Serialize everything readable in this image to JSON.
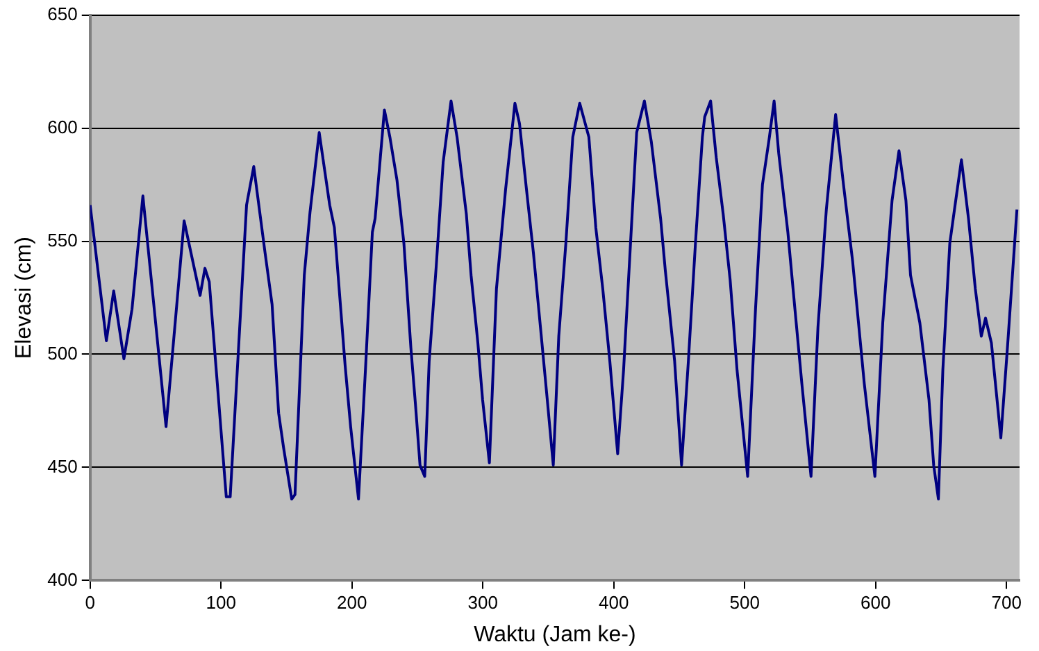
{
  "chart_data": {
    "type": "line",
    "xlabel": "Waktu (Jam ke-)",
    "ylabel": "Elevasi (cm)",
    "xlim": [
      0,
      710
    ],
    "xticks": [
      0,
      100,
      200,
      300,
      400,
      500,
      600,
      700
    ],
    "ylim": [
      400,
      650
    ],
    "yticks": [
      400,
      450,
      500,
      550,
      600,
      650
    ],
    "grid": "y",
    "legend": false,
    "marker": "none",
    "line_style": "solid",
    "series": [
      {
        "color": "#000080",
        "x": [
          0,
          12.4,
          18,
          25.8,
          32,
          40.3,
          58,
          71.8,
          84,
          87.7,
          91,
          104,
          107,
          119.5,
          125,
          133.6,
          139,
          144,
          147.7,
          154,
          156.5,
          163.6,
          168,
          175,
          183,
          186.6,
          194.8,
          199,
          205,
          210.3,
          215.6,
          217.7,
          224.8,
          229,
          234.4,
          239.7,
          245,
          248.5,
          252,
          255.6,
          259,
          264.4,
          269.7,
          275.7,
          280.3,
          287.4,
          291,
          296.2,
          299.8,
          305,
          310.4,
          317.4,
          324.5,
          328,
          333.3,
          338.6,
          344,
          349.2,
          353.8,
          358,
          363.4,
          368.7,
          374,
          381,
          386.3,
          391.6,
          397,
          403,
          407.5,
          412.8,
          417.5,
          423.4,
          428.7,
          435.8,
          439.4,
          446.5,
          451.8,
          457,
          462.4,
          467.7,
          469.5,
          474,
          478.3,
          483.6,
          488.9,
          494.2,
          502.3,
          508.3,
          513.6,
          518.9,
          522.5,
          526,
          533,
          538.4,
          543.7,
          550.7,
          556,
          562.4,
          569.5,
          575.5,
          582.5,
          591.4,
          599.5,
          605.5,
          612.6,
          617.9,
          623.2,
          626.7,
          633.8,
          640.8,
          644.4,
          648,
          651.4,
          656.7,
          661,
          665.6,
          671,
          676.2,
          680.8,
          684,
          688.5,
          695.7,
          701,
          708
        ],
        "values": [
          566,
          506,
          528,
          498,
          520,
          570,
          468,
          559,
          526,
          538,
          532,
          437,
          437,
          566,
          583,
          545,
          522,
          474,
          459,
          436,
          438,
          535,
          563,
          598,
          566,
          556,
          495,
          468,
          436,
          493,
          554,
          560,
          608,
          596,
          577,
          549,
          503,
          478,
          451,
          446,
          497,
          539,
          585,
          612,
          596,
          562,
          535,
          505,
          480,
          452,
          529,
          573,
          611,
          602,
          573,
          545,
          512,
          480,
          451,
          508,
          549,
          596,
          611,
          596,
          556,
          529,
          497,
          456,
          493,
          549,
          598,
          612,
          594,
          560,
          537,
          497,
          451,
          497,
          549,
          596,
          605,
          612,
          587,
          562,
          533,
          493,
          446,
          520,
          575,
          596,
          612,
          589,
          554,
          520,
          487,
          446,
          512,
          564,
          606,
          575,
          541,
          487,
          446,
          514,
          568,
          590,
          568,
          535,
          514,
          480,
          451,
          436,
          493,
          549,
          567,
          586,
          560,
          529,
          508,
          516,
          505,
          463,
          505,
          564
        ]
      }
    ]
  }
}
